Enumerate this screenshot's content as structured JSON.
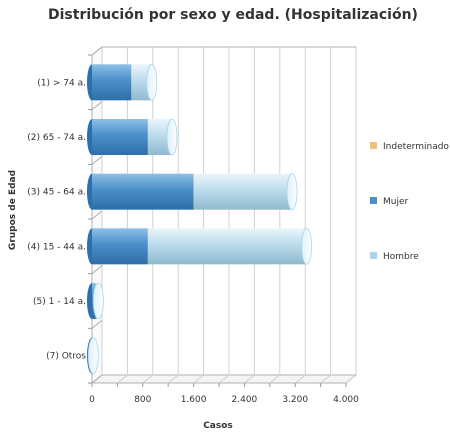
{
  "chart_data": {
    "type": "bar",
    "orientation": "horizontal",
    "stacked": true,
    "title": "Distribución por sexo y edad. (Hospitalización)",
    "xlabel": "Casos",
    "ylabel": "Grupos de Edad",
    "categories": [
      "(1) > 74 a.",
      "(2) 65 - 74 a.",
      "(3) 45 - 64 a.",
      "(4) 15 - 44 a.",
      "(5) 1 - 14 a.",
      "(7) Otros"
    ],
    "series": [
      {
        "name": "Mujer",
        "color": "#4a8fc9",
        "values": [
          620,
          880,
          1600,
          880,
          60,
          10
        ]
      },
      {
        "name": "Hombre",
        "color": "#b6d8ea",
        "values": [
          320,
          380,
          1550,
          2500,
          40,
          10
        ]
      },
      {
        "name": "Indeterminado",
        "color": "#f0c27a",
        "values": [
          0,
          0,
          0,
          0,
          0,
          0
        ]
      }
    ],
    "xlim": [
      0,
      4000
    ],
    "xticks": [
      "0",
      "800",
      "1.600",
      "2.400",
      "3.200",
      "4.000"
    ],
    "grid": true,
    "legend_position": "right"
  }
}
